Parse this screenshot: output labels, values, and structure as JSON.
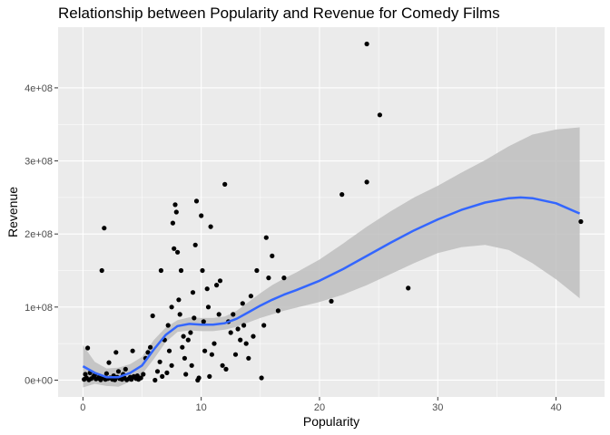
{
  "chart_data": {
    "type": "scatter",
    "title": "Relationship between Popularity and Revenue for Comedy Films",
    "xlabel": "Popularity",
    "ylabel": "Revenue",
    "xlim": [
      -2.1,
      44.1
    ],
    "ylim": [
      -23000000,
      483000000
    ],
    "x_ticks": [
      0,
      10,
      20,
      30,
      40
    ],
    "x_tick_labels": [
      "0",
      "10",
      "20",
      "30",
      "40"
    ],
    "y_ticks": [
      0,
      100000000,
      200000000,
      300000000,
      400000000
    ],
    "y_tick_labels": [
      "0e+00",
      "1e+08",
      "2e+08",
      "3e+08",
      "4e+08"
    ],
    "grid": true,
    "colors": {
      "panel": "#ebebeb",
      "grid_major": "#ffffff",
      "points": "#000000",
      "smooth_line": "#3366ff",
      "confidence_band": "#bebebe"
    },
    "points": [
      [
        0.1,
        1000000
      ],
      [
        0.3,
        3000000
      ],
      [
        0.5,
        500000
      ],
      [
        0.7,
        2000000
      ],
      [
        0.9,
        5000000
      ],
      [
        1.1,
        1500000
      ],
      [
        1.3,
        2500000
      ],
      [
        1.5,
        500000
      ],
      [
        1.7,
        4000000
      ],
      [
        1.9,
        1000000
      ],
      [
        2.1,
        2000000
      ],
      [
        2.3,
        3000000
      ],
      [
        2.5,
        1000000
      ],
      [
        2.7,
        500000
      ],
      [
        2.9,
        4000000
      ],
      [
        3.1,
        2000000
      ],
      [
        3.3,
        1000000
      ],
      [
        3.5,
        3000000
      ],
      [
        3.7,
        500000
      ],
      [
        3.9,
        2000000
      ],
      [
        4.1,
        1000000
      ],
      [
        4.3,
        5000000
      ],
      [
        4.5,
        2000000
      ],
      [
        4.7,
        1000000
      ],
      [
        4.9,
        3000000
      ],
      [
        0.2,
        8000000
      ],
      [
        0.6,
        10000000
      ],
      [
        1.0,
        7000000
      ],
      [
        1.4,
        5000000
      ],
      [
        2.0,
        9000000
      ],
      [
        2.6,
        6000000
      ],
      [
        3.0,
        12000000
      ],
      [
        3.4,
        8000000
      ],
      [
        4.0,
        4000000
      ],
      [
        4.6,
        6000000
      ],
      [
        0.4,
        44000000
      ],
      [
        1.6,
        150000000
      ],
      [
        1.8,
        208000000
      ],
      [
        2.2,
        24000000
      ],
      [
        2.8,
        38000000
      ],
      [
        3.6,
        15000000
      ],
      [
        4.2,
        40000000
      ],
      [
        5.1,
        8000000
      ],
      [
        5.3,
        30000000
      ],
      [
        5.5,
        38000000
      ],
      [
        5.7,
        45000000
      ],
      [
        5.9,
        88000000
      ],
      [
        6.1,
        0
      ],
      [
        6.3,
        12000000
      ],
      [
        6.5,
        25000000
      ],
      [
        6.6,
        150000000
      ],
      [
        6.7,
        5000000
      ],
      [
        6.9,
        55000000
      ],
      [
        7.1,
        10000000
      ],
      [
        7.2,
        75000000
      ],
      [
        7.3,
        40000000
      ],
      [
        7.5,
        20000000
      ],
      [
        7.5,
        100000000
      ],
      [
        7.6,
        215000000
      ],
      [
        7.7,
        180000000
      ],
      [
        7.8,
        240000000
      ],
      [
        7.9,
        230000000
      ],
      [
        8.0,
        175000000
      ],
      [
        8.1,
        110000000
      ],
      [
        8.2,
        90000000
      ],
      [
        8.3,
        150000000
      ],
      [
        8.4,
        45000000
      ],
      [
        8.5,
        60000000
      ],
      [
        8.6,
        30000000
      ],
      [
        8.7,
        8000000
      ],
      [
        8.9,
        55000000
      ],
      [
        9.1,
        65000000
      ],
      [
        9.2,
        20000000
      ],
      [
        9.3,
        120000000
      ],
      [
        9.4,
        85000000
      ],
      [
        9.5,
        185000000
      ],
      [
        9.6,
        245000000
      ],
      [
        9.7,
        0
      ],
      [
        9.8,
        3000000
      ],
      [
        10.0,
        225000000
      ],
      [
        10.1,
        150000000
      ],
      [
        10.2,
        80000000
      ],
      [
        10.3,
        40000000
      ],
      [
        10.5,
        125000000
      ],
      [
        10.6,
        100000000
      ],
      [
        10.7,
        5000000
      ],
      [
        10.8,
        210000000
      ],
      [
        10.9,
        35000000
      ],
      [
        11.1,
        50000000
      ],
      [
        11.3,
        130000000
      ],
      [
        11.5,
        90000000
      ],
      [
        11.6,
        136000000
      ],
      [
        11.8,
        20000000
      ],
      [
        12.0,
        268000000
      ],
      [
        12.1,
        15000000
      ],
      [
        12.3,
        80000000
      ],
      [
        12.5,
        65000000
      ],
      [
        12.7,
        90000000
      ],
      [
        12.9,
        35000000
      ],
      [
        13.1,
        70000000
      ],
      [
        13.3,
        55000000
      ],
      [
        13.5,
        105000000
      ],
      [
        13.6,
        75000000
      ],
      [
        13.8,
        50000000
      ],
      [
        14.0,
        30000000
      ],
      [
        14.2,
        115000000
      ],
      [
        14.4,
        60000000
      ],
      [
        14.7,
        150000000
      ],
      [
        15.1,
        3000000
      ],
      [
        15.3,
        75000000
      ],
      [
        15.5,
        195000000
      ],
      [
        15.7,
        140000000
      ],
      [
        16.0,
        170000000
      ],
      [
        16.5,
        95000000
      ],
      [
        17.0,
        140000000
      ],
      [
        21.0,
        108000000
      ],
      [
        21.9,
        254000000
      ],
      [
        24.0,
        460000000
      ],
      [
        24.0,
        271000000
      ],
      [
        25.1,
        363000000
      ],
      [
        27.5,
        126000000
      ],
      [
        42.1,
        217000000
      ]
    ],
    "smooth_line": {
      "x": [
        0,
        1,
        2,
        3,
        4,
        5,
        6,
        7,
        8,
        9,
        10,
        11,
        12,
        13,
        14,
        15,
        16,
        17,
        18,
        20,
        22,
        24,
        26,
        28,
        30,
        32,
        34,
        36,
        37,
        38,
        40,
        42
      ],
      "y": [
        19000000,
        10000000,
        4000000,
        4000000,
        10000000,
        20000000,
        42000000,
        62000000,
        74000000,
        77000000,
        76000000,
        76000000,
        78000000,
        84000000,
        93000000,
        102000000,
        110000000,
        117000000,
        123000000,
        136000000,
        152000000,
        170000000,
        188000000,
        205000000,
        220000000,
        233000000,
        243000000,
        249000000,
        250000000,
        249000000,
        242000000,
        228000000
      ]
    },
    "confidence_band": {
      "x": [
        0,
        1,
        2,
        3,
        4,
        5,
        6,
        7,
        8,
        9,
        10,
        11,
        12,
        13,
        14,
        15,
        16,
        17,
        18,
        20,
        22,
        24,
        26,
        28,
        30,
        32,
        34,
        36,
        38,
        40,
        42
      ],
      "lower": [
        -10000000,
        -5000000,
        -8000000,
        -9000000,
        -2000000,
        8000000,
        29000000,
        52000000,
        66000000,
        68000000,
        67000000,
        67000000,
        69000000,
        73000000,
        79000000,
        85000000,
        90000000,
        95000000,
        99000000,
        107000000,
        117000000,
        130000000,
        145000000,
        160000000,
        174000000,
        182000000,
        185000000,
        178000000,
        160000000,
        138000000,
        112000000
      ],
      "upper": [
        48000000,
        25000000,
        16000000,
        17000000,
        22000000,
        32000000,
        55000000,
        72000000,
        82000000,
        86000000,
        85000000,
        85000000,
        87000000,
        95000000,
        107000000,
        119000000,
        130000000,
        139000000,
        147000000,
        165000000,
        187000000,
        210000000,
        231000000,
        250000000,
        266000000,
        284000000,
        301000000,
        320000000,
        336000000,
        343000000,
        346000000
      ]
    }
  }
}
